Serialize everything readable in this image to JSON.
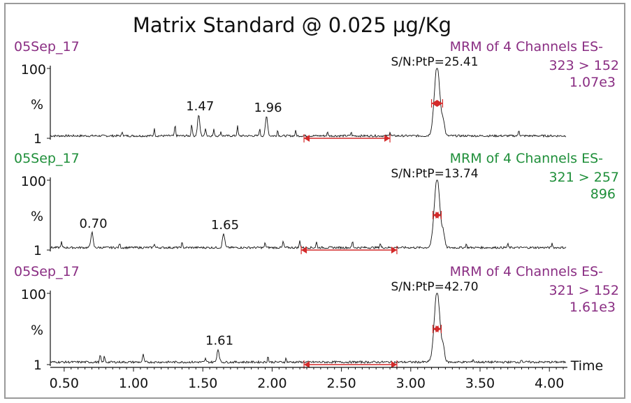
{
  "chart_data": {
    "type": "line",
    "title": "Matrix Standard @ 0.025 µg/Kg",
    "xlabel": "Time",
    "xlim": [
      0.4,
      4.12
    ],
    "x_ticks": [
      "0.50",
      "1.00",
      "1.50",
      "2.00",
      "2.50",
      "3.00",
      "3.50",
      "4.00"
    ],
    "y_ticks": [
      "100",
      "%",
      "1"
    ],
    "grid": false,
    "colors": {
      "purple": "#8a2e83",
      "green": "#1f8f3a",
      "arrow": "#d42a2a",
      "trace": "#111111"
    },
    "panels": [
      {
        "date": "05Sep_17",
        "method": "MRM of 4 Channels ES-",
        "transition": "323 > 152",
        "intensity": "1.07e3",
        "label_color": "#8a2e83",
        "sn": "S/N:PtP=25.41",
        "main_peak": {
          "x": 3.19,
          "height": 100
        },
        "labeled_peaks": [
          {
            "x": 1.47,
            "label": "1.47",
            "height": 30
          },
          {
            "x": 1.96,
            "label": "1.96",
            "height": 28
          }
        ],
        "minor_peaks": [
          [
            0.92,
            6
          ],
          [
            1.15,
            10
          ],
          [
            1.3,
            15
          ],
          [
            1.42,
            18
          ],
          [
            1.52,
            12
          ],
          [
            1.58,
            9
          ],
          [
            1.63,
            6
          ],
          [
            1.75,
            14
          ],
          [
            1.91,
            10
          ],
          [
            2.04,
            8
          ],
          [
            2.17,
            7
          ],
          [
            2.4,
            5
          ],
          [
            2.57,
            5
          ],
          [
            2.85,
            6
          ],
          [
            3.78,
            9
          ]
        ],
        "noise_arrow": [
          2.23,
          2.85
        ],
        "peak_arrow": [
          3.15,
          3.23
        ]
      },
      {
        "date": "05Sep_17",
        "method": "MRM of 4 Channels ES-",
        "transition": "321 > 257",
        "intensity": "896",
        "label_color": "#1f8f3a",
        "sn": "S/N:PtP=13.74",
        "main_peak": {
          "x": 3.19,
          "height": 100
        },
        "labeled_peaks": [
          {
            "x": 0.7,
            "label": "0.70",
            "height": 22
          },
          {
            "x": 1.65,
            "label": "1.65",
            "height": 20
          }
        ],
        "minor_peaks": [
          [
            0.48,
            8
          ],
          [
            0.9,
            6
          ],
          [
            1.15,
            6
          ],
          [
            1.35,
            7
          ],
          [
            1.95,
            7
          ],
          [
            2.08,
            9
          ],
          [
            2.2,
            10
          ],
          [
            2.32,
            8
          ],
          [
            2.58,
            9
          ],
          [
            2.78,
            6
          ],
          [
            3.4,
            5
          ],
          [
            3.7,
            5
          ],
          [
            4.02,
            6
          ]
        ],
        "noise_arrow": [
          2.21,
          2.9
        ],
        "peak_arrow": [
          3.16,
          3.22
        ]
      },
      {
        "date": "05Sep_17",
        "method": "MRM of 4 Channels ES-",
        "transition": "321 > 152",
        "intensity": "1.61e3",
        "label_color": "#8a2e83",
        "sn": "S/N:PtP=42.70",
        "main_peak": {
          "x": 3.19,
          "height": 100
        },
        "labeled_peaks": [
          {
            "x": 1.61,
            "label": "1.61",
            "height": 18
          }
        ],
        "minor_peaks": [
          [
            0.76,
            10
          ],
          [
            0.79,
            8
          ],
          [
            1.07,
            12
          ],
          [
            1.52,
            5
          ],
          [
            1.97,
            8
          ],
          [
            2.1,
            5
          ],
          [
            3.45,
            4
          ],
          [
            3.8,
            4
          ]
        ],
        "noise_arrow": [
          2.23,
          2.9
        ],
        "peak_arrow": [
          3.16,
          3.22
        ]
      }
    ]
  }
}
